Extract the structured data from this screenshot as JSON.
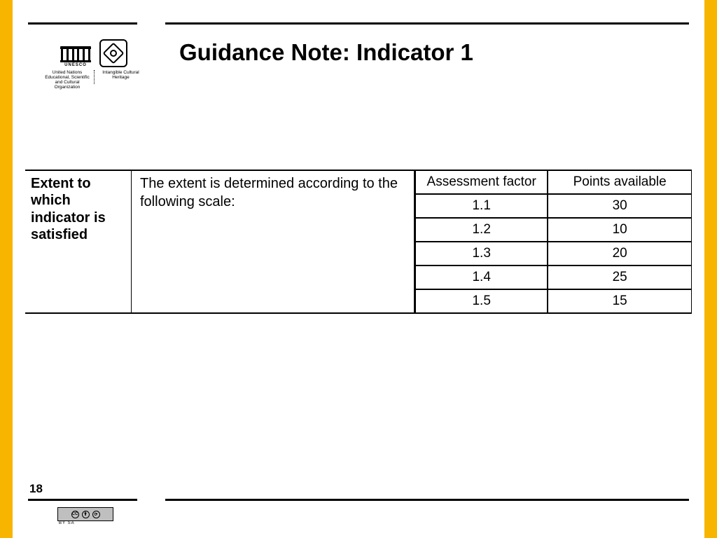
{
  "colors": {
    "yellow_border": "#f7b500",
    "rule": "#000000",
    "background": "#ffffff",
    "cc_badge_bg": "#bfbfbf"
  },
  "header": {
    "title": "Guidance Note: Indicator 1",
    "title_fontsize": 33,
    "logo": {
      "unesco_wordmark": "UNESCO",
      "unesco_caption": "United Nations Educational, Scientific and Cultural Organization",
      "ich_caption": "Intangible Cultural Heritage"
    }
  },
  "table": {
    "row_label": "Extent to which indicator is satisfied",
    "scale_text": "The extent is determined according to the following scale:",
    "assessment": {
      "columns": [
        "Assessment factor",
        "Points available"
      ],
      "rows": [
        [
          "1.1",
          "30"
        ],
        [
          "1.2",
          "10"
        ],
        [
          "1.3",
          "20"
        ],
        [
          "1.4",
          "25"
        ],
        [
          "1.5",
          "15"
        ]
      ],
      "col_widths_pct": [
        48,
        52
      ],
      "border_color": "#000000",
      "cell_fontsize": 19
    },
    "label_fontsize": 20,
    "scale_fontsize": 20
  },
  "footer": {
    "page_number": "18",
    "cc": {
      "label": "CC",
      "variant": "BY   SA"
    }
  }
}
